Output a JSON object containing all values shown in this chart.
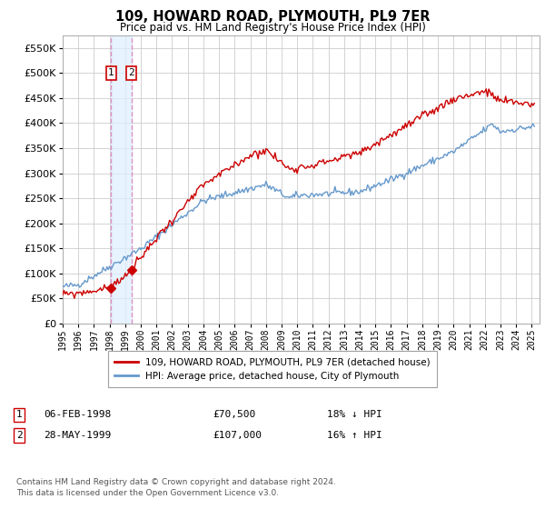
{
  "title": "109, HOWARD ROAD, PLYMOUTH, PL9 7ER",
  "subtitle": "Price paid vs. HM Land Registry's House Price Index (HPI)",
  "legend_line1": "109, HOWARD ROAD, PLYMOUTH, PL9 7ER (detached house)",
  "legend_line2": "HPI: Average price, detached house, City of Plymouth",
  "transaction1_date": "06-FEB-1998",
  "transaction1_price": "£70,500",
  "transaction1_hpi": "18% ↓ HPI",
  "transaction1_year": 1998.1,
  "transaction1_value": 70500,
  "transaction2_date": "28-MAY-1999",
  "transaction2_price": "£107,000",
  "transaction2_hpi": "16% ↑ HPI",
  "transaction2_year": 1999.4,
  "transaction2_value": 107000,
  "footer": "Contains HM Land Registry data © Crown copyright and database right 2024.\nThis data is licensed under the Open Government Licence v3.0.",
  "hpi_color": "#6699cc",
  "price_color": "#cc0000",
  "vline_color": "#dd88bb",
  "shade_color": "#ddeeff",
  "ylim": [
    0,
    575000
  ],
  "yticks": [
    0,
    50000,
    100000,
    150000,
    200000,
    250000,
    300000,
    350000,
    400000,
    450000,
    500000,
    550000
  ],
  "xlim_start": 1995.0,
  "xlim_end": 2025.5,
  "background_color": "#ffffff",
  "grid_color": "#cccccc"
}
